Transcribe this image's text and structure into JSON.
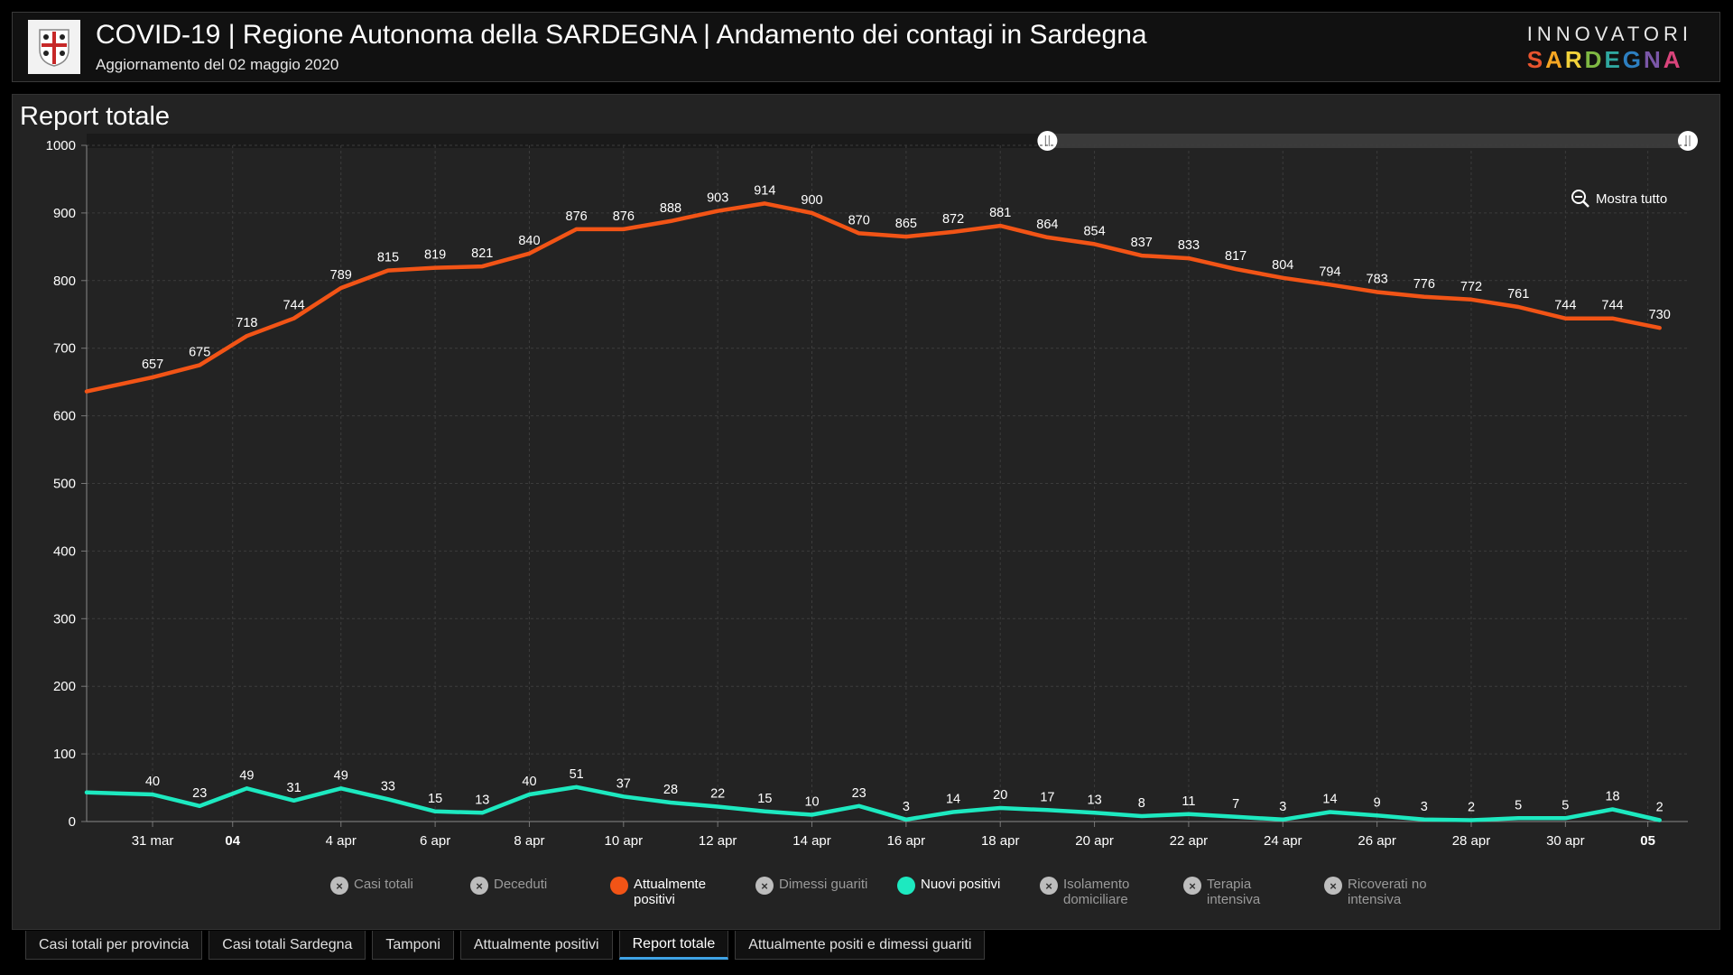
{
  "header": {
    "title": "COVID-19 | Regione Autonoma della SARDEGNA | Andamento dei contagi in Sardegna",
    "subtitle": "Aggiornamento del 02 maggio 2020",
    "brand_top": "INNOVATORI",
    "brand_bottom": "SARDEGNA",
    "brand_colors": [
      "#e8542e",
      "#f5a623",
      "#f2d23b",
      "#7fb843",
      "#2fa7a0",
      "#2d7fc1",
      "#7b57a8",
      "#d9447b"
    ]
  },
  "panel": {
    "title": "Report totale"
  },
  "zoom": {
    "label": "Mostra tutto"
  },
  "legend": [
    {
      "label": "Casi totali",
      "active": false,
      "color": "#bdbdbd"
    },
    {
      "label": "Deceduti",
      "active": false,
      "color": "#bdbdbd"
    },
    {
      "label": "Attualmente positivi",
      "active": true,
      "color": "#f25416"
    },
    {
      "label": "Dimessi guariti",
      "active": false,
      "color": "#bdbdbd"
    },
    {
      "label": "Nuovi positivi",
      "active": true,
      "color": "#1de9c0"
    },
    {
      "label": "Isolamento domiciliare",
      "active": false,
      "color": "#bdbdbd"
    },
    {
      "label": "Terapia intensiva",
      "active": false,
      "color": "#bdbdbd"
    },
    {
      "label": "Ricoverati no intensiva",
      "active": false,
      "color": "#bdbdbd"
    }
  ],
  "tabs": [
    {
      "label": "Casi totali per provincia",
      "active": false
    },
    {
      "label": "Casi totali Sardegna",
      "active": false
    },
    {
      "label": "Tamponi",
      "active": false
    },
    {
      "label": "Attualmente positivi",
      "active": false
    },
    {
      "label": "Report totale",
      "active": true
    },
    {
      "label": "Attualmente positi e dimessi guariti",
      "active": false
    }
  ],
  "chart_data": {
    "type": "line",
    "title": "Report totale",
    "x_range": [
      -1.4,
      32.6
    ],
    "ylim": [
      0,
      1000
    ],
    "yticks": [
      0,
      100,
      200,
      300,
      400,
      500,
      600,
      700,
      800,
      900,
      1000
    ],
    "x_ticks": [
      {
        "x": 0,
        "label": "31 mar",
        "bold": false
      },
      {
        "x": 1.7,
        "label": "04",
        "bold": true
      },
      {
        "x": 4,
        "label": "4 apr",
        "bold": false
      },
      {
        "x": 6,
        "label": "6 apr",
        "bold": false
      },
      {
        "x": 8,
        "label": "8 apr",
        "bold": false
      },
      {
        "x": 10,
        "label": "10 apr",
        "bold": false
      },
      {
        "x": 12,
        "label": "12 apr",
        "bold": false
      },
      {
        "x": 14,
        "label": "14 apr",
        "bold": false
      },
      {
        "x": 16,
        "label": "16 apr",
        "bold": false
      },
      {
        "x": 18,
        "label": "18 apr",
        "bold": false
      },
      {
        "x": 20,
        "label": "20 apr",
        "bold": false
      },
      {
        "x": 22,
        "label": "22 apr",
        "bold": false
      },
      {
        "x": 24,
        "label": "24 apr",
        "bold": false
      },
      {
        "x": 26,
        "label": "26 apr",
        "bold": false
      },
      {
        "x": 28,
        "label": "28 apr",
        "bold": false
      },
      {
        "x": 30,
        "label": "30 apr",
        "bold": false
      },
      {
        "x": 31.75,
        "label": "05",
        "bold": true
      }
    ],
    "series": [
      {
        "name": "Attualmente positivi",
        "color": "#f25416",
        "start_value": 636,
        "values": [
          657,
          675,
          718,
          744,
          789,
          815,
          819,
          821,
          840,
          876,
          876,
          888,
          903,
          914,
          900,
          870,
          865,
          872,
          881,
          864,
          854,
          837,
          833,
          817,
          804,
          794,
          783,
          776,
          772,
          761,
          744,
          744,
          730
        ]
      },
      {
        "name": "Nuovi positivi",
        "color": "#1de9c0",
        "start_value": 43,
        "values": [
          40,
          23,
          49,
          31,
          49,
          33,
          15,
          13,
          40,
          51,
          37,
          28,
          22,
          15,
          10,
          23,
          3,
          14,
          20,
          17,
          13,
          8,
          11,
          7,
          3,
          14,
          9,
          3,
          2,
          5,
          5,
          18,
          2
        ]
      }
    ],
    "grid": true,
    "range_slider": {
      "start_fraction": 0.6,
      "end_fraction": 1.0
    }
  }
}
